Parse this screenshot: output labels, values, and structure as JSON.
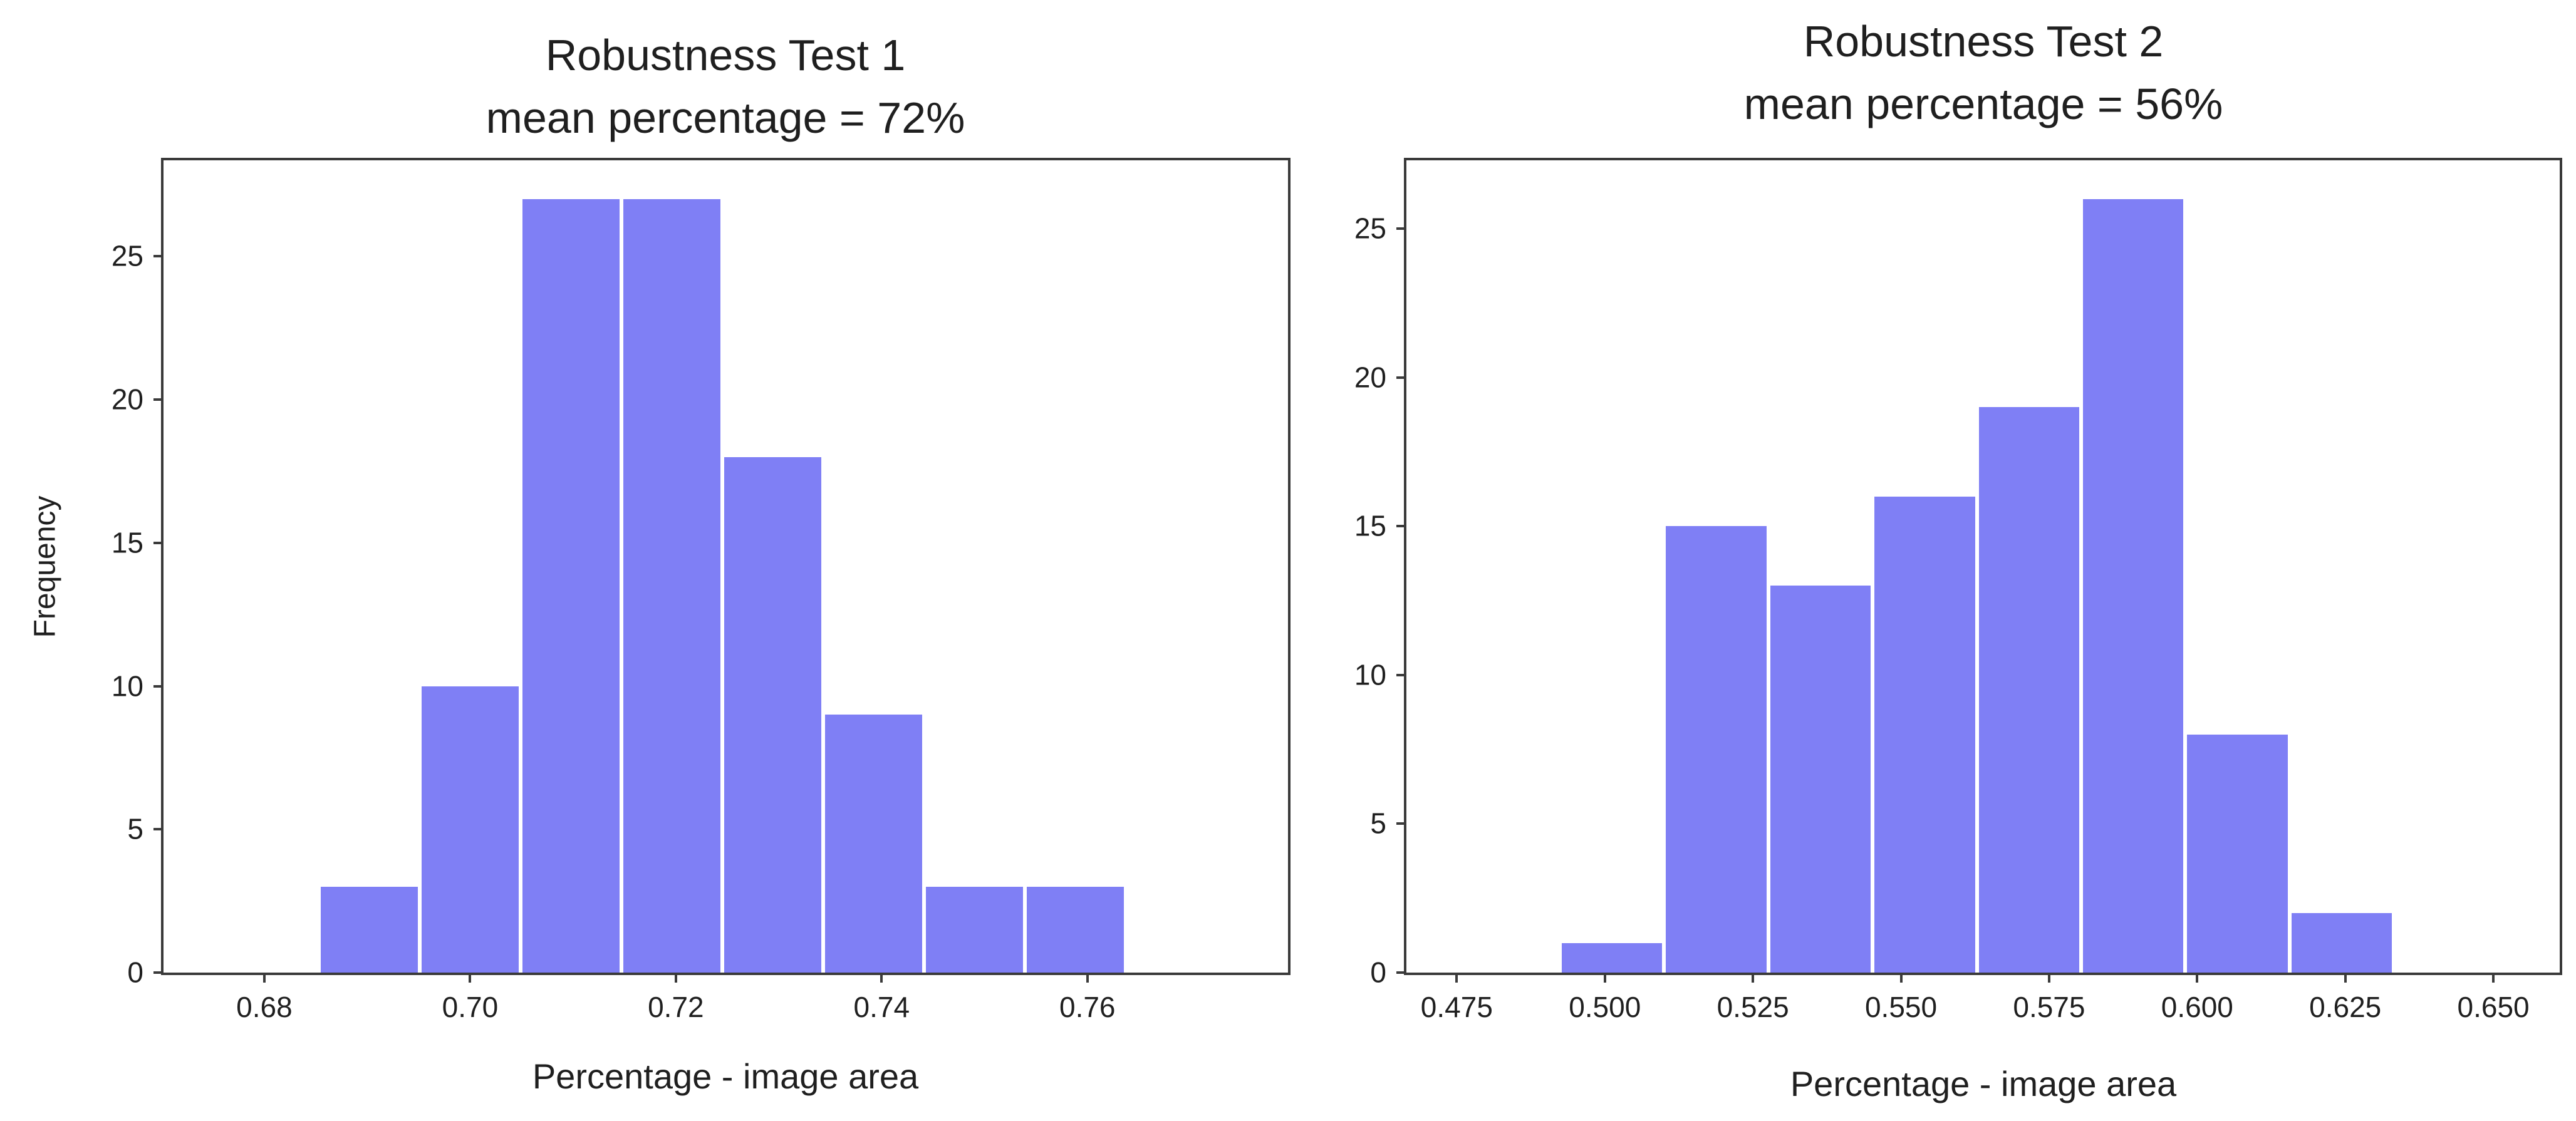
{
  "figure": {
    "background": "#ffffff",
    "bar_color": "#7f7ff5",
    "axis_color": "#3a3a3a",
    "text_color": "#1f1f1f"
  },
  "chart_data": [
    {
      "type": "bar",
      "variant": "histogram",
      "title": "Robustness Test 1",
      "subtitle": "mean percentage = 72%",
      "xlabel": "Percentage - image area",
      "ylabel": "Frequency",
      "bin_start": 0.6853,
      "bin_width": 0.0098,
      "values": [
        3,
        10,
        27,
        27,
        18,
        9,
        3,
        3
      ],
      "bin_edges": [
        0.6853,
        0.6951,
        0.7049,
        0.7147,
        0.7245,
        0.7343,
        0.7441,
        0.7539,
        0.7637
      ],
      "xlim": [
        0.6702,
        0.7795
      ],
      "ylim": [
        0,
        28.35
      ],
      "xticks": [
        {
          "v": 0.68,
          "label": "0.68"
        },
        {
          "v": 0.7,
          "label": "0.70"
        },
        {
          "v": 0.72,
          "label": "0.72"
        },
        {
          "v": 0.74,
          "label": "0.74"
        },
        {
          "v": 0.76,
          "label": "0.76"
        }
      ],
      "yticks": [
        {
          "v": 0,
          "label": "0"
        },
        {
          "v": 5,
          "label": "5"
        },
        {
          "v": 10,
          "label": "10"
        },
        {
          "v": 15,
          "label": "15"
        },
        {
          "v": 20,
          "label": "20"
        },
        {
          "v": 25,
          "label": "25"
        }
      ],
      "grid": false,
      "frame": "box"
    },
    {
      "type": "bar",
      "variant": "histogram",
      "title": "Robustness Test 2",
      "subtitle": "mean percentage = 56%",
      "xlabel": "Percentage - image area",
      "ylabel": "",
      "bin_start": 0.4924,
      "bin_width": 0.0176,
      "values": [
        1,
        15,
        13,
        16,
        19,
        26,
        8,
        2
      ],
      "bin_edges": [
        0.4924,
        0.51,
        0.5276,
        0.5452,
        0.5628,
        0.5804,
        0.598,
        0.6156,
        0.6332
      ],
      "xlim": [
        0.4665,
        0.6612
      ],
      "ylim": [
        0,
        27.3
      ],
      "xticks": [
        {
          "v": 0.475,
          "label": "0.475"
        },
        {
          "v": 0.5,
          "label": "0.500"
        },
        {
          "v": 0.525,
          "label": "0.525"
        },
        {
          "v": 0.55,
          "label": "0.550"
        },
        {
          "v": 0.575,
          "label": "0.575"
        },
        {
          "v": 0.6,
          "label": "0.600"
        },
        {
          "v": 0.625,
          "label": "0.625"
        },
        {
          "v": 0.65,
          "label": "0.650"
        }
      ],
      "yticks": [
        {
          "v": 0,
          "label": "0"
        },
        {
          "v": 5,
          "label": "5"
        },
        {
          "v": 10,
          "label": "10"
        },
        {
          "v": 15,
          "label": "15"
        },
        {
          "v": 20,
          "label": "20"
        },
        {
          "v": 25,
          "label": "25"
        }
      ],
      "grid": false,
      "frame": "box"
    }
  ]
}
